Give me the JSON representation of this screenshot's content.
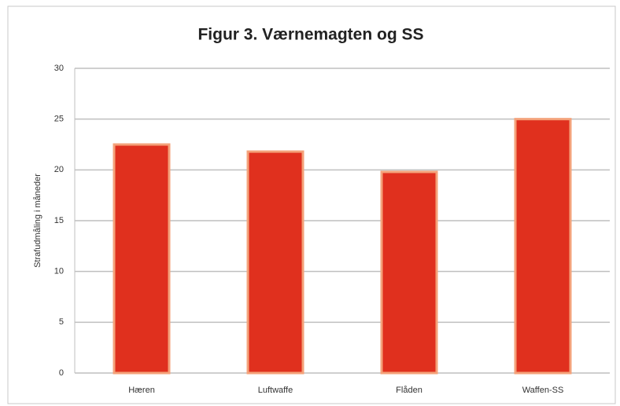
{
  "chart_data": {
    "type": "bar",
    "title": "Figur 3. Værnemagten og SS",
    "y_label": "Strafudmåling i måneder",
    "categories": [
      "Hæren",
      "Luftwaffe",
      "Flåden",
      "Waffen-SS"
    ],
    "values": [
      22.5,
      21.8,
      19.8,
      25
    ],
    "color": "#e0301e",
    "ylim": [
      0,
      30
    ],
    "yticks": [
      0,
      5,
      10,
      15,
      20,
      25,
      30
    ],
    "grid": true
  }
}
